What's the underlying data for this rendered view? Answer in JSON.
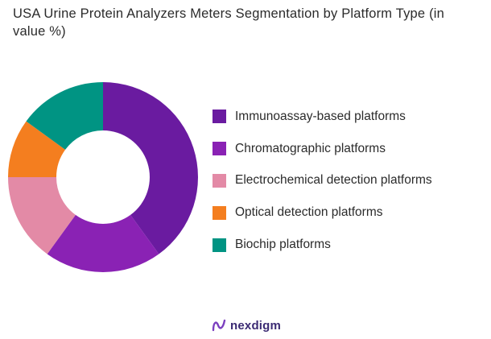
{
  "chart_data": {
    "type": "pie",
    "title": "USA Urine Protein Analyzers Meters Segmentation by Platform Type (in value %)",
    "donut": true,
    "categories": [
      "Immunoassay-based platforms",
      "Chromatographic platforms",
      "Electrochemical detection platforms",
      "Optical detection platforms",
      "Biochip platforms"
    ],
    "values": [
      40,
      20,
      15,
      10,
      15
    ],
    "colors": [
      "#6a1ba0",
      "#8a22b4",
      "#e38aa6",
      "#f47e1f",
      "#009483"
    ],
    "legend_position": "right"
  },
  "brand": {
    "name": "nexdigm"
  }
}
